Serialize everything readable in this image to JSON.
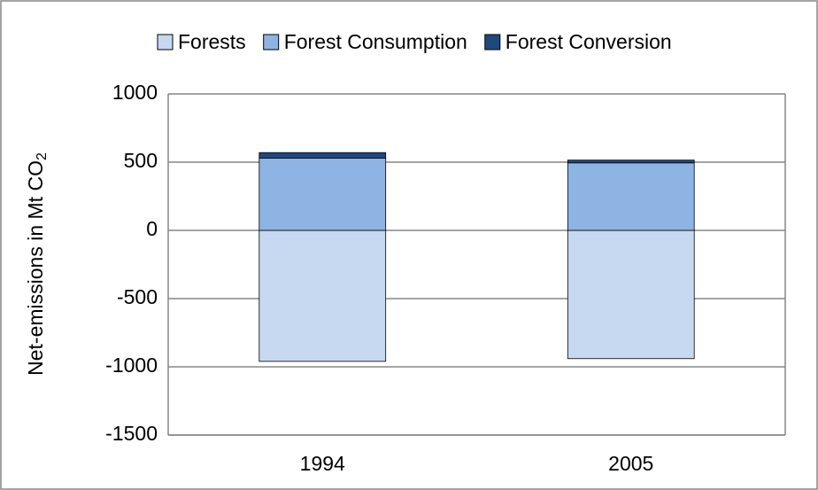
{
  "chart_data": {
    "type": "bar",
    "stacked": true,
    "y_label": "Net-emissions in Mt CO",
    "y_label_subscript": "2",
    "categories": [
      "1994",
      "2005"
    ],
    "series": [
      {
        "name": "Forests",
        "color": "#c6d9f1",
        "values": [
          -960,
          -940
        ]
      },
      {
        "name": "Forest Consumption",
        "color": "#8eb4e3",
        "values": [
          530,
          495
        ]
      },
      {
        "name": "Forest Conversion",
        "color": "#1f497d",
        "values": [
          40,
          20
        ]
      }
    ],
    "ylim": [
      -1500,
      1000
    ],
    "yticks": [
      -1500,
      -1000,
      -500,
      0,
      500,
      1000
    ],
    "grid": true,
    "legend": "top"
  }
}
